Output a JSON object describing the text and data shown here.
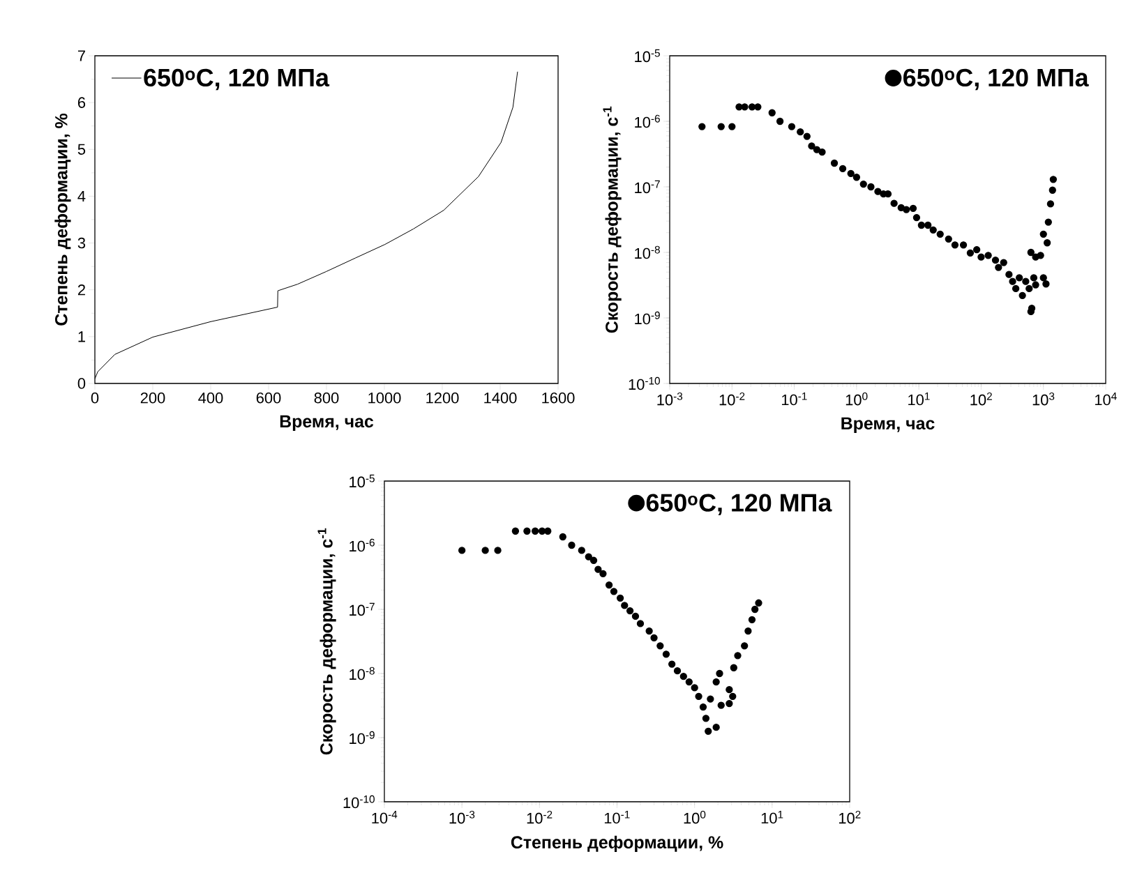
{
  "chart_data": [
    {
      "type": "line",
      "xlabel": "Время, час",
      "ylabel": "Степень деформации, %",
      "xlim": [
        0,
        1600
      ],
      "xticks": [
        0,
        200,
        400,
        600,
        800,
        1000,
        1200,
        1400,
        1600
      ],
      "ylim": [
        0,
        7
      ],
      "yticks": [
        0,
        1,
        2,
        3,
        4,
        5,
        6,
        7
      ],
      "legend": "top left",
      "marker": "none",
      "line_style": "solid",
      "series": [
        {
          "name": "650$^{o}$C, 120 МПа",
          "color": "#000000",
          "x": [
            0,
            10,
            69,
            200,
            400,
            631,
            632,
            700,
            799,
            900,
            1002,
            1100,
            1205,
            1325,
            1403,
            1444,
            1460
          ],
          "values": [
            0.1,
            0.25,
            0.62,
            0.99,
            1.32,
            1.63,
            1.98,
            2.12,
            2.39,
            2.68,
            2.97,
            3.3,
            3.7,
            4.42,
            5.15,
            5.9,
            6.66
          ]
        }
      ]
    },
    {
      "type": "scatter",
      "xlabel": "Время, час",
      "ylabel": "Скорость деформации, с$^{-1}$",
      "log": "xy",
      "xlim": [
        0.001,
        10000
      ],
      "xticks": [
        {
          "value": 0.001,
          "label": "10$^{-3}$"
        },
        {
          "value": 0.01,
          "label": "10$^{-2}$"
        },
        {
          "value": 0.1,
          "label": "10$^{-1}$"
        },
        {
          "value": 1,
          "label": "10$^{0}$"
        },
        {
          "value": 10,
          "label": "10$^{1}$"
        },
        {
          "value": 100,
          "label": "10$^{2}$"
        },
        {
          "value": 1000,
          "label": "10$^{3}$"
        },
        {
          "value": 10000,
          "label": "10$^{4}$"
        }
      ],
      "ylim": [
        1e-10,
        1e-05
      ],
      "yticks": [
        {
          "value": 1e-10,
          "label": "10$^{-10}$"
        },
        {
          "value": 1e-09,
          "label": "10$^{-9}$"
        },
        {
          "value": 1e-08,
          "label": "10$^{-8}$"
        },
        {
          "value": 1e-07,
          "label": "10$^{-7}$"
        },
        {
          "value": 1e-06,
          "label": "10$^{-6}$"
        },
        {
          "value": 1e-05,
          "label": "10$^{-5}$"
        }
      ],
      "legend": "top right",
      "marker": "circle",
      "series": [
        {
          "name": "650$^{o}$C, 120 МПа",
          "color": "#000000",
          "x": [
            0.0033,
            0.0067,
            0.01,
            0.013,
            0.016,
            0.021,
            0.026,
            0.044,
            0.059,
            0.091,
            0.125,
            0.16,
            0.19,
            0.23,
            0.28,
            0.44,
            0.6,
            0.81,
            1.0,
            1.29,
            1.7,
            2.2,
            2.7,
            3.2,
            4.0,
            5.2,
            6.3,
            8.1,
            9.2,
            11,
            14,
            17,
            22,
            30,
            38,
            52,
            67,
            85,
            100,
            130,
            170,
            190,
            230,
            280,
            320,
            360,
            410,
            460,
            520,
            590,
            630,
            650,
            700,
            750,
            630,
            750,
            900,
            1000,
            1100,
            1000,
            1150,
            1200,
            1300,
            1400,
            1440
          ],
          "values": [
            8.3e-07,
            8.3e-07,
            8.3e-07,
            1.66e-06,
            1.66e-06,
            1.66e-06,
            1.66e-06,
            1.35e-06,
            1e-06,
            8.3e-07,
            6.9e-07,
            5.9e-07,
            4.2e-07,
            3.7e-07,
            3.4e-07,
            2.3e-07,
            1.9e-07,
            1.6e-07,
            1.4e-07,
            1.1e-07,
            1e-07,
            8.5e-08,
            7.8e-08,
            7.8e-08,
            5.6e-08,
            4.8e-08,
            4.5e-08,
            4.7e-08,
            3.4e-08,
            2.6e-08,
            2.6e-08,
            2.2e-08,
            1.9e-08,
            1.6e-08,
            1.3e-08,
            1.3e-08,
            9.8e-09,
            1.1e-08,
            8.5e-09,
            9e-09,
            7.6e-09,
            5.9e-09,
            7e-09,
            4.6e-09,
            3.6e-09,
            2.8e-09,
            4.1e-09,
            2.2e-09,
            3.6e-09,
            2.8e-09,
            1.25e-09,
            1.4e-09,
            4.1e-09,
            3.2e-09,
            1e-08,
            8.5e-09,
            9e-09,
            4.1e-09,
            3.3e-09,
            1.9e-08,
            1.4e-08,
            2.9e-08,
            5.5e-08,
            8.9e-08,
            1.3e-07
          ]
        }
      ]
    },
    {
      "type": "scatter",
      "xlabel": "Степень деформации, %",
      "ylabel": "Скорость деформации, с$^{-1}$",
      "log": "xy",
      "xlim": [
        0.0001,
        100
      ],
      "xticks": [
        {
          "value": 0.0001,
          "label": "10$^{-4}$"
        },
        {
          "value": 0.001,
          "label": "10$^{-3}$"
        },
        {
          "value": 0.01,
          "label": "10$^{-2}$"
        },
        {
          "value": 0.1,
          "label": "10$^{-1}$"
        },
        {
          "value": 1,
          "label": "10$^{0}$"
        },
        {
          "value": 10,
          "label": "10$^{1}$"
        },
        {
          "value": 100,
          "label": "10$^{2}$"
        }
      ],
      "ylim": [
        1e-10,
        1e-05
      ],
      "yticks": [
        {
          "value": 1e-10,
          "label": "10$^{-10}$"
        },
        {
          "value": 1e-09,
          "label": "10$^{-9}$"
        },
        {
          "value": 1e-08,
          "label": "10$^{-8}$"
        },
        {
          "value": 1e-07,
          "label": "10$^{-7}$"
        },
        {
          "value": 1e-06,
          "label": "10$^{-6}$"
        },
        {
          "value": 1e-05,
          "label": "10$^{-5}$"
        }
      ],
      "legend": "top right",
      "marker": "circle",
      "series": [
        {
          "name": "650$^{o}$C, 120 МПа",
          "color": "#000000",
          "x": [
            0.001,
            0.002,
            0.0029,
            0.0049,
            0.0069,
            0.0088,
            0.0108,
            0.0128,
            0.02,
            0.026,
            0.035,
            0.043,
            0.05,
            0.057,
            0.066,
            0.079,
            0.091,
            0.11,
            0.125,
            0.147,
            0.173,
            0.2,
            0.26,
            0.3,
            0.36,
            0.43,
            0.51,
            0.6,
            0.72,
            0.85,
            1.0,
            1.13,
            1.29,
            1.4,
            1.5,
            1.9,
            1.6,
            1.9,
            2.1,
            2.2,
            2.8,
            2.8,
            3.1,
            3.2,
            3.6,
            4.4,
            4.9,
            5.5,
            6.0,
            6.7
          ],
          "values": [
            8.3e-07,
            8.3e-07,
            8.3e-07,
            1.66e-06,
            1.66e-06,
            1.66e-06,
            1.66e-06,
            1.66e-06,
            1.35e-06,
            1e-06,
            8.3e-07,
            6.6e-07,
            5.8e-07,
            4.2e-07,
            3.6e-07,
            2.4e-07,
            1.9e-07,
            1.5e-07,
            1.15e-07,
            9.5e-08,
            7.8e-08,
            6e-08,
            4.6e-08,
            3.6e-08,
            2.7e-08,
            2e-08,
            1.4e-08,
            1.1e-08,
            9e-09,
            7.4e-09,
            6e-09,
            4.4e-09,
            3e-09,
            2e-09,
            1.26e-09,
            1.45e-09,
            4e-09,
            7.4e-09,
            1e-08,
            3.2e-09,
            5.6e-09,
            3.4e-09,
            4.4e-09,
            1.23e-08,
            1.9e-08,
            2.7e-08,
            4.6e-08,
            6.9e-08,
            1e-07,
            1.26e-07
          ]
        }
      ]
    }
  ]
}
